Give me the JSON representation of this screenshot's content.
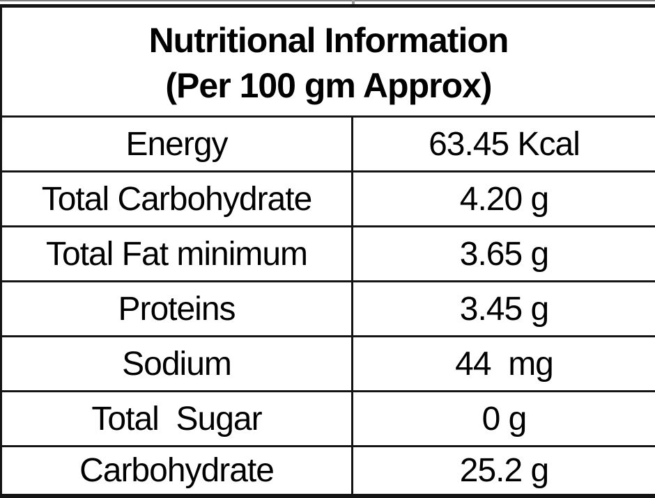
{
  "table": {
    "title_line1": "Nutritional Information",
    "title_line2": "(Per 100 gm Approx)",
    "rows": [
      {
        "label": "Energy",
        "value": "63.45 Kcal"
      },
      {
        "label": "Total Carbohydrate",
        "value": "4.20 g"
      },
      {
        "label": "Total Fat minimum",
        "value": "3.65 g"
      },
      {
        "label": "Proteins",
        "value": "3.45 g"
      },
      {
        "label": "Sodium",
        "value": "44  mg"
      },
      {
        "label": "Total  Sugar",
        "value": "0 g"
      },
      {
        "label": "Carbohydrate",
        "value": "25.2 g"
      }
    ]
  },
  "colors": {
    "border": "#141414",
    "text": "#000000",
    "background": "#ffffff",
    "gridline": "#7d7d7d"
  }
}
